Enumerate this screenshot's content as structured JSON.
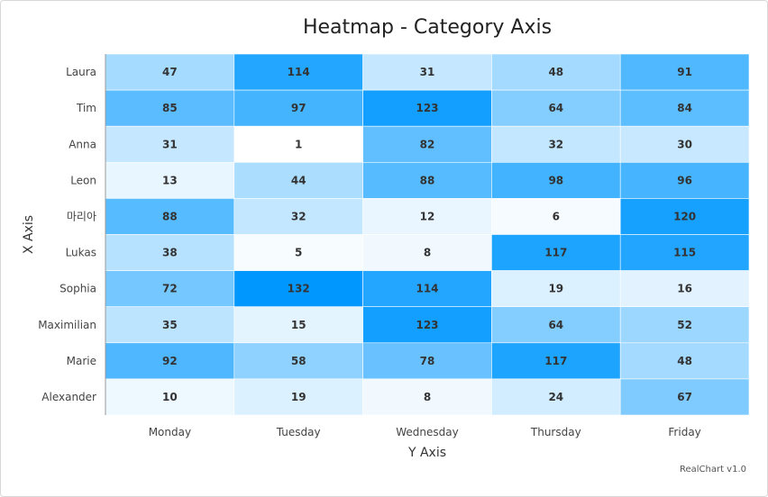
{
  "chart_data": {
    "type": "heatmap",
    "title": "Heatmap - Category Axis",
    "xlabel": "Y Axis",
    "ylabel": "X Axis",
    "columns": [
      "Monday",
      "Tuesday",
      "Wednesday",
      "Thursday",
      "Friday"
    ],
    "rows": [
      "Laura",
      "Tim",
      "Anna",
      "Leon",
      "마리아",
      "Lukas",
      "Sophia",
      "Maximilian",
      "Marie",
      "Alexander"
    ],
    "values": [
      [
        47,
        114,
        31,
        48,
        91
      ],
      [
        85,
        97,
        123,
        64,
        84
      ],
      [
        31,
        1,
        82,
        32,
        30
      ],
      [
        13,
        44,
        88,
        98,
        96
      ],
      [
        88,
        32,
        12,
        6,
        120
      ],
      [
        38,
        5,
        8,
        117,
        115
      ],
      [
        72,
        132,
        114,
        19,
        16
      ],
      [
        35,
        15,
        123,
        64,
        52
      ],
      [
        92,
        58,
        78,
        117,
        48
      ],
      [
        10,
        19,
        8,
        24,
        67
      ]
    ],
    "color_min": "#ffffff",
    "color_max": "#0098ff",
    "value_range": [
      1,
      132
    ]
  },
  "footer": {
    "credit": "RealChart v1.0"
  }
}
